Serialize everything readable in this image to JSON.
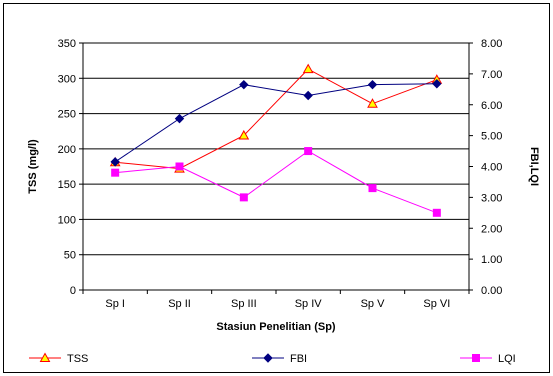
{
  "chart_data": {
    "type": "line",
    "categories": [
      "Sp I",
      "Sp II",
      "Sp III",
      "Sp IV",
      "Sp V",
      "Sp VI"
    ],
    "xlabel": "Stasiun Penelitian (Sp)",
    "ylabel": "TSS (mg/l)",
    "y2label": "FBI,LQI",
    "ylim": [
      0,
      350
    ],
    "y2lim": [
      0,
      8
    ],
    "yticks": [
      "0",
      "50",
      "100",
      "150",
      "200",
      "250",
      "300",
      "350"
    ],
    "y2ticks": [
      "0.00",
      "1.00",
      "2.00",
      "3.00",
      "4.00",
      "5.00",
      "6.00",
      "7.00",
      "8.00"
    ],
    "grid": true,
    "legend_position": "bottom",
    "series": [
      {
        "name": "TSS",
        "axis": "left",
        "color": "#ff0000",
        "marker": "triangle",
        "values": [
          181,
          172,
          219,
          313,
          264,
          298
        ]
      },
      {
        "name": "FBI",
        "axis": "right",
        "color": "#000080",
        "marker": "diamond",
        "values": [
          4.15,
          5.55,
          6.65,
          6.3,
          6.65,
          6.68
        ]
      },
      {
        "name": "LQI",
        "axis": "right",
        "color": "#ff00ff",
        "marker": "square",
        "values": [
          3.8,
          4.0,
          3.0,
          4.5,
          3.3,
          2.5
        ]
      }
    ]
  }
}
